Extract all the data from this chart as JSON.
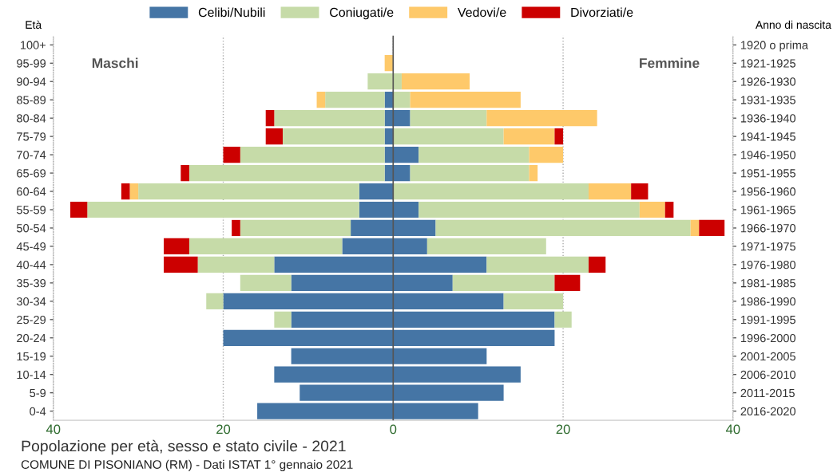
{
  "chart_data": {
    "type": "bar",
    "orientation": "horizontal",
    "stacked": true,
    "title": "Popolazione per età, sesso e stato civile - 2021",
    "ylabel": "Età",
    "y2label": "Anno di nascita",
    "categories": [
      "100+",
      "95-99",
      "90-94",
      "85-89",
      "80-84",
      "75-79",
      "70-74",
      "65-69",
      "60-64",
      "55-59",
      "50-54",
      "45-49",
      "40-44",
      "35-39",
      "30-34",
      "25-29",
      "20-24",
      "15-19",
      "10-14",
      "5-9",
      "0-4"
    ],
    "y2_categories": [
      "1920 o prima",
      "1921-1925",
      "1926-1930",
      "1931-1935",
      "1936-1940",
      "1941-1945",
      "1946-1950",
      "1951-1955",
      "1956-1960",
      "1961-1965",
      "1966-1970",
      "1971-1975",
      "1976-1980",
      "1981-1985",
      "1986-1990",
      "1991-1995",
      "1996-2000",
      "2001-2005",
      "2006-2010",
      "2011-2015",
      "2016-2020"
    ],
    "series": [
      {
        "color": "#4575a5",
        "values": [
          null,
          null,
          null,
          -1,
          -1,
          -1,
          -1,
          -1,
          -4,
          -4,
          -5,
          -6,
          -14,
          -12,
          -20,
          -12,
          -20,
          -12,
          -14,
          -11,
          -16
        ]
      },
      {
        "color": "#c6dba8",
        "values": [
          null,
          null,
          -3,
          -7,
          -13,
          -12,
          -17,
          -23,
          -26,
          -32,
          -13,
          -18,
          -9,
          -6,
          -2,
          -2,
          null,
          null,
          null,
          null,
          null
        ]
      },
      {
        "color": "#fec96a",
        "values": [
          null,
          -1,
          null,
          -1,
          null,
          null,
          null,
          null,
          -1,
          null,
          null,
          null,
          null,
          null,
          null,
          null,
          null,
          null,
          null,
          null,
          null
        ]
      },
      {
        "color": "#cc0000",
        "values": [
          null,
          null,
          null,
          null,
          -1,
          -2,
          -2,
          -1,
          -1,
          -2,
          -1,
          -3,
          -4,
          null,
          null,
          null,
          null,
          null,
          null,
          null,
          null
        ]
      },
      {
        "name": "Celibi/Nubili",
        "color": "#4575a5",
        "values": [
          null,
          null,
          null,
          null,
          2,
          null,
          3,
          2,
          null,
          3,
          5,
          4,
          11,
          7,
          13,
          19,
          19,
          11,
          15,
          13,
          10
        ]
      },
      {
        "name": "Coniugati/e",
        "color": "#c6dba8",
        "values": [
          null,
          null,
          1,
          2,
          9,
          13,
          13,
          14,
          23,
          26,
          30,
          14,
          12,
          12,
          7,
          2,
          null,
          null,
          null,
          null,
          null
        ]
      },
      {
        "name": "Vedovi/e",
        "color": "#fec96a",
        "values": [
          null,
          null,
          8,
          13,
          13,
          6,
          4,
          1,
          5,
          3,
          1,
          null,
          null,
          null,
          null,
          null,
          null,
          null,
          null,
          null,
          null
        ]
      },
      {
        "name": "Divorziati/e",
        "color": "#cc0000",
        "values": [
          null,
          null,
          null,
          null,
          null,
          1,
          null,
          null,
          2,
          1,
          3,
          null,
          2,
          3,
          null,
          null,
          null,
          null,
          null,
          null,
          null
        ]
      }
    ],
    "xlim": [
      -40,
      40
    ],
    "xticks": [
      {
        "value": -40,
        "label": "40"
      },
      {
        "value": -20,
        "label": "20"
      },
      0,
      20,
      40
    ],
    "grid": "x",
    "legend": "top",
    "ref_lines": [
      {
        "axis": "x",
        "value": 0,
        "color": "#555555"
      }
    ],
    "annotations": [
      "Maschi",
      "Femmine",
      "COMUNE DI PISONIANO (RM) - Dati ISTAT 1° gennaio 2021"
    ]
  }
}
